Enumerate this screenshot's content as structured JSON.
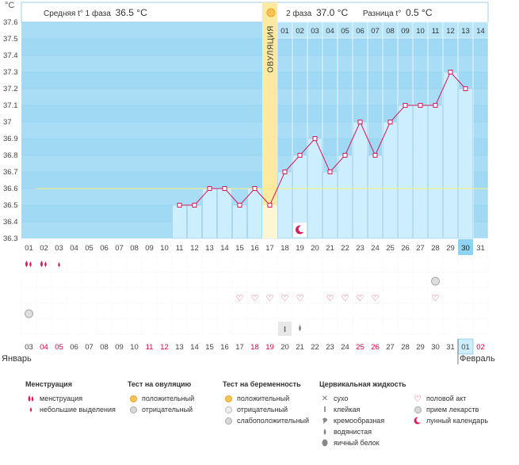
{
  "colors": {
    "sky": "#9fd9f4",
    "stripe": "#a9ddf6",
    "bar": "#cdeefd",
    "bar_border": "#9ecfe6",
    "line": "#d6195c",
    "ovulation": "#fbeaa0",
    "header_bar": "#b7e4f7",
    "accent_red": "#e0003c",
    "coverline": "#f7ef7a"
  },
  "header": {
    "unit": "°C",
    "phase1_label": "Средняя t° 1 фаза",
    "phase1_value": "36.5 °C",
    "phase2_label": "2 фаза",
    "phase2_value": "37.0 °C",
    "diff_label": "Разница t°",
    "diff_value": "0.5 °C",
    "ovulation_label": "ОВУЛЯЦИЯ"
  },
  "chart_data": {
    "type": "line",
    "ylim": [
      36.3,
      37.6
    ],
    "yticks": [
      "37.6",
      "37.5",
      "37.4",
      "37.3",
      "37.2",
      "37.1",
      "37",
      "36.9",
      "36.8",
      "36.7",
      "36.6",
      "36.5",
      "36.4",
      "36.3"
    ],
    "coverline": 36.6,
    "ovulation_day_index": 16,
    "cycle_days": [
      "01",
      "02",
      "03",
      "04",
      "05",
      "06",
      "07",
      "08",
      "09",
      "10",
      "11",
      "12",
      "13",
      "14",
      "15",
      "16",
      "17",
      "18",
      "19",
      "20",
      "21",
      "22",
      "23",
      "24",
      "25",
      "26",
      "27",
      "28",
      "29",
      "30",
      "31"
    ],
    "current_day_index": 29,
    "post_ovulation_days": [
      "01",
      "02",
      "03",
      "04",
      "05",
      "06",
      "07",
      "08",
      "09",
      "10",
      "11",
      "12",
      "13",
      "14"
    ],
    "temperatures": [
      null,
      null,
      null,
      null,
      null,
      null,
      null,
      null,
      null,
      null,
      36.5,
      36.5,
      36.6,
      36.6,
      36.5,
      36.6,
      36.5,
      36.7,
      36.8,
      36.9,
      36.7,
      36.8,
      37.0,
      36.8,
      37.0,
      37.1,
      37.1,
      37.1,
      37.3,
      37.2,
      null
    ],
    "dates": [
      "03",
      "04",
      "05",
      "06",
      "07",
      "08",
      "09",
      "10",
      "11",
      "12",
      "13",
      "14",
      "15",
      "16",
      "17",
      "18",
      "19",
      "20",
      "21",
      "22",
      "23",
      "24",
      "25",
      "26",
      "27",
      "28",
      "29",
      "30",
      "31",
      "01",
      "02"
    ],
    "red_date_indices": [
      1,
      2,
      8,
      9,
      15,
      16,
      22,
      23,
      30
    ],
    "month_start": "Январь",
    "month_next": "Февраль",
    "month_next_index": 29
  },
  "marks": {
    "menstruation_heavy": [
      0,
      1
    ],
    "menstruation_light": [
      2
    ],
    "moon_chart_day": 18,
    "medication": [
      27
    ],
    "intercourse": [
      14,
      15,
      16,
      17,
      18,
      20,
      21,
      22,
      23,
      27
    ],
    "preg_weak": [
      0
    ],
    "sticky": [
      17
    ],
    "watery": [
      18
    ]
  },
  "legend": {
    "menstruation": {
      "title": "Менструация",
      "items": [
        "менструация",
        "небольшие выделения"
      ]
    },
    "ovulation_test": {
      "title": "Тест на овуляцию",
      "items": [
        "положительный",
        "отрицательный"
      ]
    },
    "pregnancy_test": {
      "title": "Тест на беременность",
      "items": [
        "положительный",
        "отрицательный",
        "слабоположительный"
      ]
    },
    "cervical": {
      "title": "Цервикальная жидкость",
      "items": [
        "сухо",
        "клейкая",
        "кремообразная",
        "водянистая",
        "яичный белок"
      ]
    },
    "other": {
      "items": [
        "половой акт",
        "прием лекарств",
        "лунный календарь"
      ]
    }
  }
}
